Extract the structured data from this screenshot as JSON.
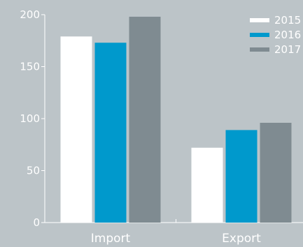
{
  "chart_data": {
    "type": "bar",
    "title": "",
    "xlabel": "",
    "ylabel": "",
    "categories": [
      "Import",
      "Export"
    ],
    "series": [
      {
        "name": "2015",
        "color": "#ffffff",
        "values": [
          179,
          72
        ]
      },
      {
        "name": "2016",
        "color": "#0099cc",
        "values": [
          173,
          89
        ]
      },
      {
        "name": "2017",
        "color": "#7f8b91",
        "values": [
          198,
          96
        ]
      }
    ],
    "ylim": [
      0,
      200
    ],
    "yticks": [
      "0",
      "50",
      "100",
      "150",
      "200"
    ],
    "grid": false,
    "legend_position": "top-right",
    "background": "#bcc4c8",
    "axis_color": "#ffffff"
  }
}
